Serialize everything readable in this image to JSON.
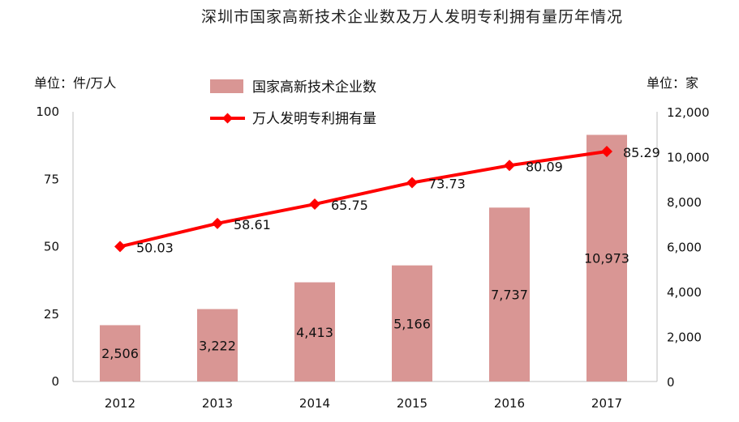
{
  "chart_data": {
    "type": "bar+line",
    "title": "深圳市国家高新技术企业数及万人发明专利拥有量历年情况",
    "left_axis_unit": "单位：件/万人",
    "right_axis_unit": "单位：家",
    "categories": [
      "2012",
      "2013",
      "2014",
      "2015",
      "2016",
      "2017"
    ],
    "left_ticks": [
      "100",
      "75",
      "50",
      "25",
      "0"
    ],
    "right_ticks": [
      "12,000",
      "10,000",
      "8,000",
      "6,000",
      "4,000",
      "2,000",
      "0"
    ],
    "left_ylim": [
      0,
      100
    ],
    "right_ylim": [
      0,
      12000
    ],
    "bar_series": {
      "name": "国家高新技术企业数",
      "axis": "right",
      "color": "#d99694",
      "values": [
        2506,
        3222,
        4413,
        5166,
        7737,
        10973
      ],
      "labels": [
        "2,506",
        "3,222",
        "4,413",
        "5,166",
        "7,737",
        "10,973"
      ]
    },
    "line_series": {
      "name": "万人发明专利拥有量",
      "axis": "left",
      "color": "#ff0000",
      "values": [
        50.03,
        58.61,
        65.75,
        73.73,
        80.09,
        85.29
      ],
      "labels": [
        "50.03",
        "58.61",
        "65.75",
        "73.73",
        "80.09",
        "85.29"
      ]
    },
    "legend": "top-center",
    "grid": false
  }
}
